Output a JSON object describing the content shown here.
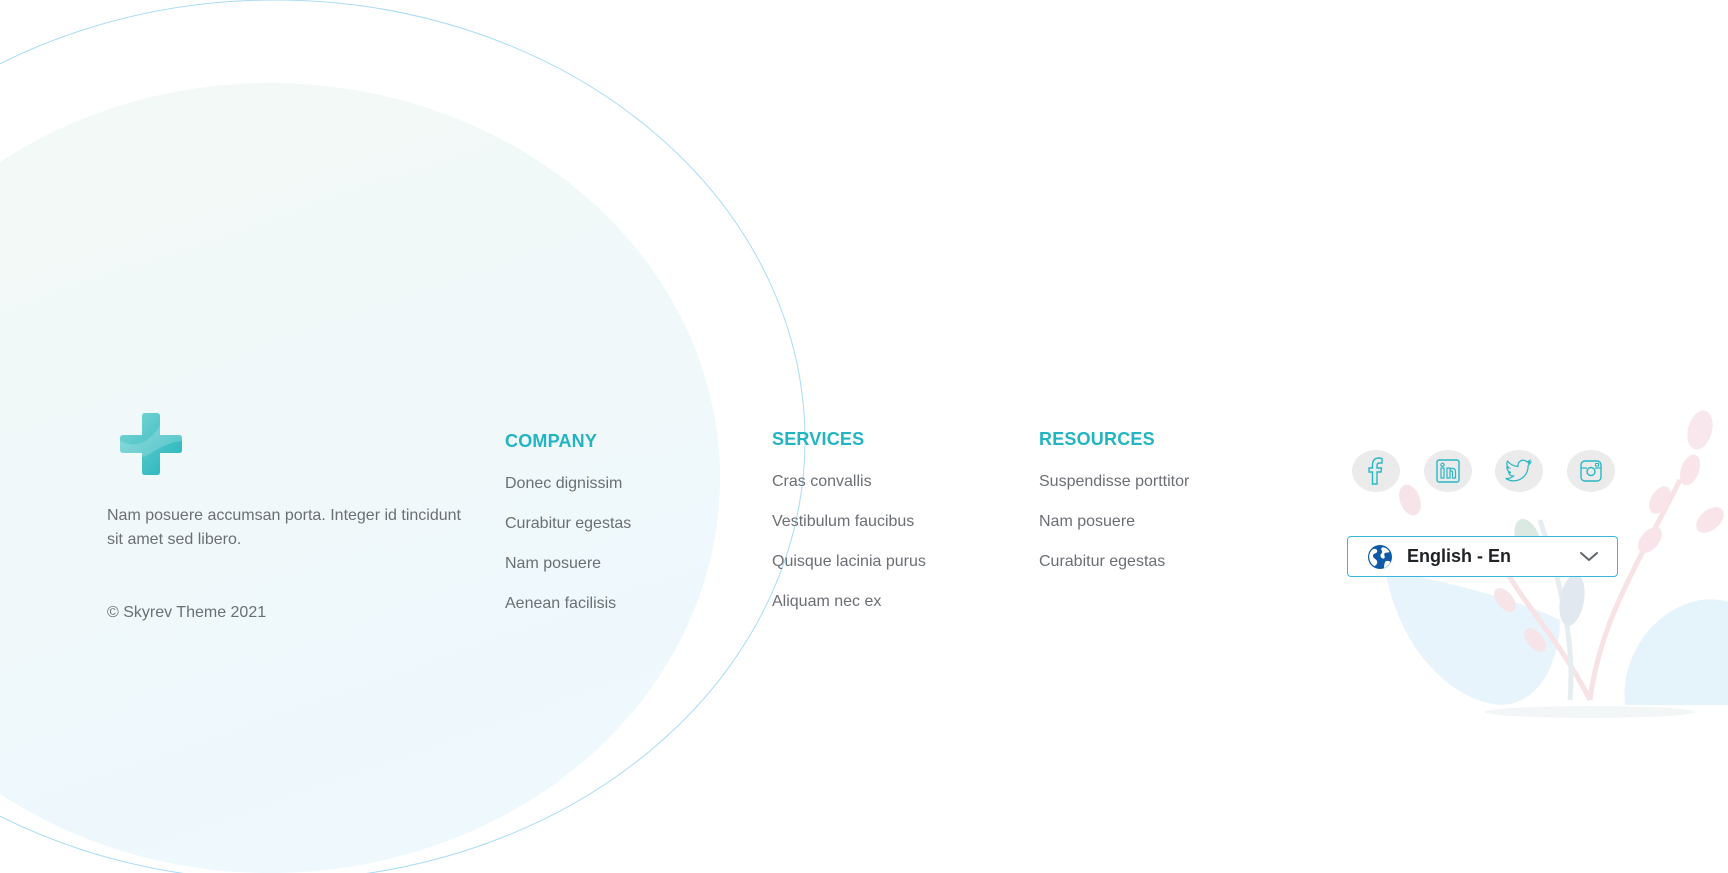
{
  "brand": {
    "about": "Nam posuere accumsan porta. Integer id tincidunt sit amet sed libero.",
    "copyright": "© Skyrev Theme 2021"
  },
  "columns": [
    {
      "heading": "COMPANY",
      "links": [
        "Donec dignissim",
        "Curabitur egestas",
        "Nam posuere",
        "Aenean facilisis"
      ]
    },
    {
      "heading": "SERVICES",
      "links": [
        "Cras convallis",
        "Vestibulum faucibus",
        "Quisque lacinia purus",
        "Aliquam nec ex"
      ]
    },
    {
      "heading": "RESOURCES",
      "links": [
        "Suspendisse porttitor",
        "Nam posuere",
        "Curabitur egestas"
      ]
    }
  ],
  "social": [
    {
      "icon": "facebook-icon"
    },
    {
      "icon": "linkedin-icon"
    },
    {
      "icon": "twitter-icon"
    },
    {
      "icon": "instagram-icon"
    }
  ],
  "language": {
    "selected": "English - En",
    "icon": "globe-icon"
  },
  "colors": {
    "accent": "#22b5c1",
    "text": "#6b6f74",
    "select_border": "#39b6e0",
    "social_bg": "#ebebeb"
  }
}
